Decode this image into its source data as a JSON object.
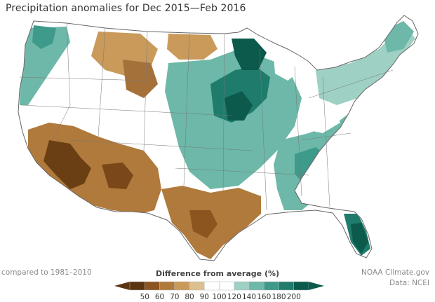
{
  "title": "Precipitation anomalies for Dec 2015—Feb 2016",
  "baseline_note": "compared to 1981–2010",
  "credit": {
    "org": "NOAA Climate.gov",
    "data": "Data: NCEI"
  },
  "legend": {
    "title": "Difference from average",
    "unit": "(%)",
    "ticks": [
      "50",
      "60",
      "70",
      "80",
      "90",
      "100",
      "120",
      "140",
      "160",
      "180",
      "200"
    ],
    "colors": [
      "#5a3410",
      "#8c5520",
      "#b07a3c",
      "#c99a5a",
      "#dcc08f",
      "#ffffff",
      "#ffffff",
      "#9fd0c4",
      "#6db8a8",
      "#3e9a8a",
      "#1f7c6c",
      "#0b5a4c"
    ]
  },
  "colors": {
    "very_dry": "#6b3f14",
    "dry": "#a5713a",
    "somewhat_dry": "#c89a5e",
    "slightly_dry": "#dec394",
    "near_normal": "#ffffff",
    "slightly_wet": "#9fd0c4",
    "wet": "#5fae9c",
    "very_wet": "#2a8776",
    "extremely_wet": "#0b5a4c",
    "borders": "#666666"
  }
}
